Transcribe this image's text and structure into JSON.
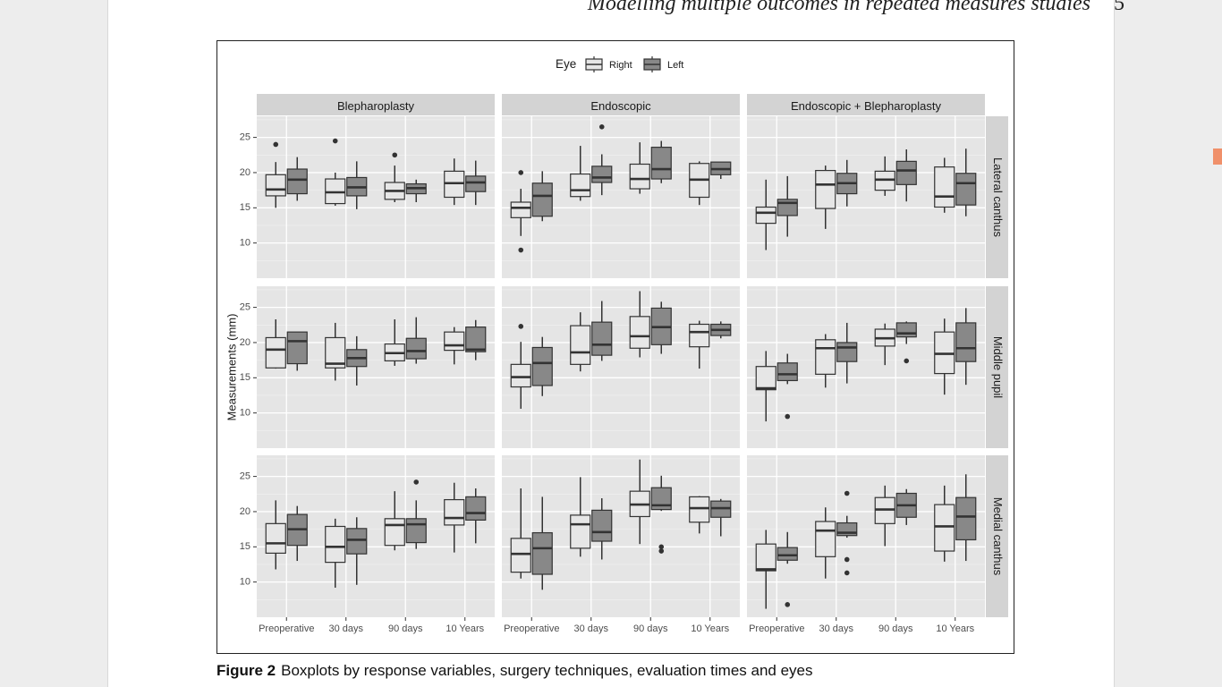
{
  "page": {
    "running_head": "Modelling multiple outcomes in repeated measures studies",
    "page_number": "5",
    "marker_color": "#f0906a"
  },
  "figure": {
    "label": "Figure 2",
    "caption": "Boxplots by response variables, surgery techniques, evaluation times and eyes"
  },
  "chart_data": {
    "type": "boxplot",
    "title": "",
    "xlabel": "",
    "ylabel": "Measurements (mm)",
    "legend": {
      "title": "Eye",
      "position": "top",
      "entries": [
        {
          "name": "Right",
          "color": "#e6e6e6"
        },
        {
          "name": "Left",
          "color": "#888888"
        }
      ]
    },
    "facet_columns": [
      "Blepharoplasty",
      "Endoscopic",
      "Endoscopic + Blepharoplasty"
    ],
    "facet_rows": [
      "Lateral canthus",
      "Middle pupil",
      "Medial canthus"
    ],
    "x_categories": [
      "Preoperative",
      "30 days",
      "90 days",
      "10 Years"
    ],
    "y_ticks": [
      10,
      15,
      20,
      25
    ],
    "ylim": [
      5,
      28
    ],
    "grid": true,
    "panel_background": "#e5e5e5",
    "strip_background": "#d3d3d3",
    "panels": [
      [
        [
          [
            [
              15,
              16.7,
              17.6,
              19.7,
              21.5,
              [
                24
              ]
            ],
            [
              16,
              17,
              19,
              20.5,
              22.2,
              []
            ]
          ],
          [
            [
              15.3,
              15.6,
              17.2,
              19.1,
              20,
              [
                24.5
              ]
            ],
            [
              14.8,
              16.7,
              17.9,
              19.3,
              21.6,
              []
            ]
          ],
          [
            [
              15.8,
              16.2,
              17.4,
              18.6,
              21,
              [
                22.5
              ]
            ],
            [
              15.8,
              17,
              17.8,
              18.4,
              19,
              []
            ]
          ],
          [
            [
              15.4,
              16.5,
              18.5,
              20.2,
              22,
              []
            ],
            [
              15.4,
              17.3,
              18.6,
              19.5,
              21.7,
              []
            ]
          ]
        ],
        [
          [
            [
              11,
              13.6,
              15,
              15.8,
              17.7,
              [
                20,
                9
              ]
            ],
            [
              13.1,
              13.8,
              16.7,
              18.5,
              20.2,
              []
            ]
          ],
          [
            [
              16,
              16.6,
              17.5,
              19.8,
              23.8,
              []
            ],
            [
              16.8,
              18.6,
              19.3,
              20.9,
              22.6,
              [
                26.5
              ]
            ]
          ],
          [
            [
              17,
              17.7,
              19.1,
              21.2,
              24.3,
              []
            ],
            [
              18.5,
              19.1,
              20.5,
              23.6,
              24.5,
              []
            ]
          ],
          [
            [
              15.4,
              16.5,
              19,
              21.3,
              21.6,
              []
            ],
            [
              19.1,
              19.7,
              20.5,
              21.5,
              21.5,
              []
            ]
          ]
        ],
        [
          [
            [
              9,
              12.8,
              14.3,
              15.1,
              19,
              []
            ],
            [
              10.9,
              13.9,
              15.7,
              16.2,
              19.5,
              []
            ]
          ],
          [
            [
              12,
              14.9,
              18.3,
              20.3,
              21,
              []
            ],
            [
              15.2,
              17,
              18.5,
              19.9,
              21.8,
              []
            ]
          ],
          [
            [
              16.7,
              17.5,
              19,
              20.2,
              22.3,
              []
            ],
            [
              15.9,
              18.3,
              20.3,
              21.6,
              23.3,
              []
            ]
          ],
          [
            [
              14.3,
              15.1,
              16.6,
              20.8,
              22.1,
              []
            ],
            [
              13.8,
              15.4,
              18.5,
              19.9,
              23.4,
              []
            ]
          ]
        ]
      ],
      [
        [
          [
            [
              16.3,
              16.4,
              19,
              20.7,
              23.3,
              []
            ],
            [
              16,
              17,
              20.2,
              21.5,
              21.5,
              []
            ]
          ],
          [
            [
              14.6,
              16.4,
              17,
              20.7,
              22.8,
              []
            ],
            [
              13.9,
              16.6,
              17.8,
              19,
              20.9,
              []
            ]
          ],
          [
            [
              16.7,
              17.4,
              18.5,
              19.8,
              23.3,
              []
            ],
            [
              17,
              17.7,
              18.8,
              20.6,
              23.6,
              []
            ]
          ],
          [
            [
              16.9,
              18.9,
              19.6,
              21.5,
              22.2,
              []
            ],
            [
              17.5,
              18.7,
              19,
              22.2,
              23.2,
              []
            ]
          ]
        ],
        [
          [
            [
              10.6,
              13.7,
              15.1,
              16.9,
              20.1,
              [
                22.3
              ]
            ],
            [
              12.4,
              13.9,
              17.1,
              19.3,
              20.8,
              []
            ]
          ],
          [
            [
              15.9,
              16.9,
              18.6,
              22.4,
              24.3,
              []
            ],
            [
              17.4,
              18.2,
              19.7,
              22.9,
              25.9,
              []
            ]
          ],
          [
            [
              17.9,
              19.2,
              20.9,
              23.7,
              27.3,
              []
            ],
            [
              18.4,
              19.7,
              22.2,
              24.9,
              25.8,
              []
            ]
          ],
          [
            [
              16.3,
              19.4,
              21.5,
              22.6,
              23.1,
              []
            ],
            [
              20.6,
              21,
              21.8,
              22.6,
              23,
              []
            ]
          ]
        ],
        [
          [
            [
              8.8,
              13.3,
              13.5,
              16.6,
              18.8,
              []
            ],
            [
              14.1,
              14.6,
              15.5,
              17.1,
              18.4,
              [
                9.5
              ]
            ]
          ],
          [
            [
              13.6,
              15.5,
              19.2,
              20.4,
              21.2,
              []
            ],
            [
              14.2,
              17.3,
              19.3,
              20,
              22.8,
              []
            ]
          ],
          [
            [
              16.8,
              19.5,
              20.6,
              21.9,
              22.7,
              []
            ],
            [
              19.8,
              20.8,
              21.3,
              22.8,
              23,
              [
                17.4
              ]
            ]
          ],
          [
            [
              12.6,
              15.6,
              18.4,
              21.5,
              23.4,
              []
            ],
            [
              14,
              17.3,
              19.2,
              22.8,
              24.9,
              []
            ]
          ]
        ]
      ],
      [
        [
          [
            [
              11.8,
              14.1,
              15.5,
              18.3,
              21.6,
              []
            ],
            [
              13,
              15.2,
              17.5,
              19.6,
              20.8,
              []
            ]
          ],
          [
            [
              9.2,
              12.8,
              15,
              17.9,
              19,
              []
            ],
            [
              9.6,
              14,
              16,
              17.6,
              19.2,
              []
            ]
          ],
          [
            [
              14.5,
              15.2,
              18.1,
              19,
              22.9,
              []
            ],
            [
              14.7,
              15.6,
              18.2,
              19,
              21.6,
              [
                24.2
              ]
            ]
          ],
          [
            [
              14.2,
              18.1,
              19.1,
              21.7,
              24.1,
              []
            ],
            [
              15.5,
              18.8,
              19.8,
              22.1,
              23.3,
              []
            ]
          ]
        ],
        [
          [
            [
              10.5,
              11.4,
              14,
              16.2,
              23.3,
              []
            ],
            [
              8.9,
              11.1,
              14.8,
              17,
              22.1,
              []
            ]
          ],
          [
            [
              13.6,
              14.8,
              18.2,
              19.5,
              24.9,
              []
            ],
            [
              13.2,
              15.8,
              17.1,
              20.2,
              21.9,
              []
            ]
          ],
          [
            [
              15.4,
              19.3,
              21,
              22.9,
              27.4,
              []
            ],
            [
              20.1,
              20.3,
              20.9,
              23.4,
              25.1,
              [
                15,
                14.4
              ]
            ]
          ],
          [
            [
              16.9,
              18.5,
              20.5,
              22.1,
              22.2,
              []
            ],
            [
              16.5,
              19.2,
              20.5,
              21.5,
              21.8,
              []
            ]
          ]
        ],
        [
          [
            [
              6.2,
              11.6,
              11.8,
              15.4,
              17.4,
              []
            ],
            [
              12.6,
              13.1,
              13.8,
              14.9,
              17.1,
              [
                6.8
              ]
            ]
          ],
          [
            [
              10.5,
              13.6,
              17.3,
              18.6,
              20.6,
              []
            ],
            [
              16.3,
              16.6,
              17,
              18.4,
              19.4,
              [
                22.6,
                13.2,
                11.3
              ]
            ]
          ],
          [
            [
              15.1,
              18.3,
              20.3,
              22,
              23.7,
              []
            ],
            [
              18.1,
              19.2,
              20.9,
              22.6,
              23.2,
              []
            ]
          ],
          [
            [
              12.9,
              14.4,
              17.9,
              21,
              23.7,
              []
            ],
            [
              13,
              16,
              19.3,
              22,
              25.3,
              []
            ]
          ]
        ]
      ]
    ]
  }
}
